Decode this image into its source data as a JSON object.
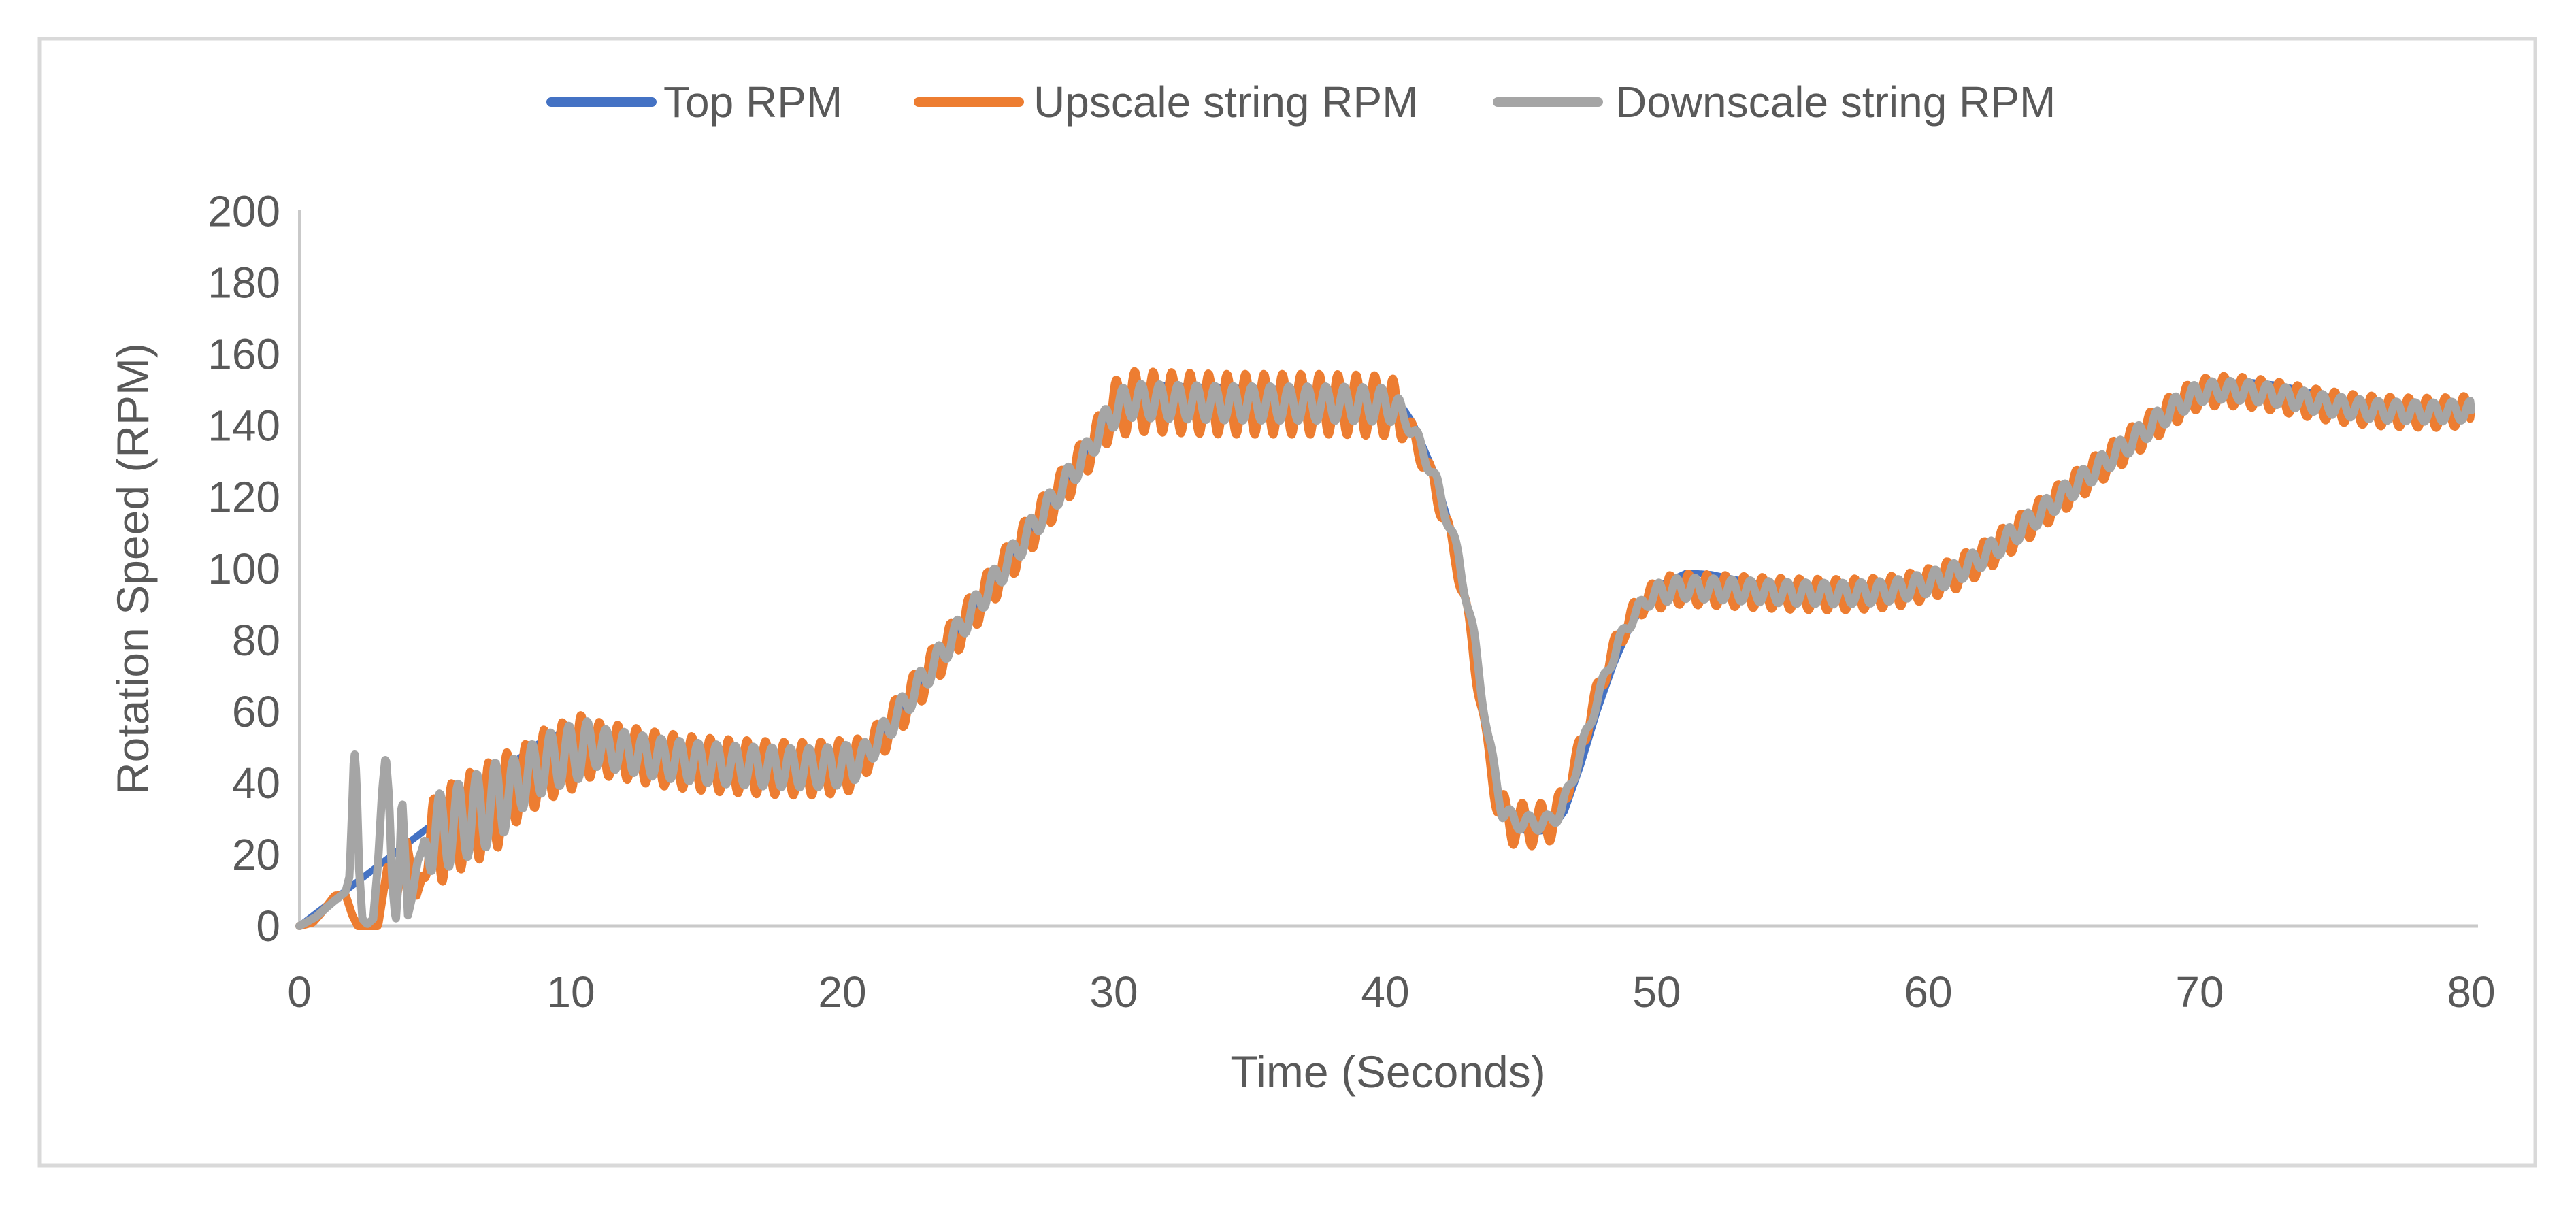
{
  "window": {
    "background_color": "#ffffff",
    "card_border_color": "#d9d9d9"
  },
  "chart_data": {
    "type": "line",
    "title": "",
    "xlabel": "Time (Seconds)",
    "ylabel": "Rotation Speed (RPM)",
    "xlim": [
      0,
      80
    ],
    "ylim": [
      0,
      200
    ],
    "xticks": [
      0,
      10,
      20,
      30,
      40,
      50,
      60,
      70,
      80
    ],
    "yticks": [
      0,
      20,
      40,
      60,
      80,
      100,
      120,
      140,
      160,
      180,
      200
    ],
    "grid": false,
    "legend_position": "top-center",
    "axis_color": "#c9c9c9",
    "label_color": "#595959",
    "oscillation_period_seconds": 0.68,
    "series": [
      {
        "name": "Top RPM",
        "color": "#4472C4",
        "stroke_width": 10,
        "phase_lag": 0,
        "mean_keypoints": [
          [
            0,
            0
          ],
          [
            1,
            5.8
          ],
          [
            2,
            11.6
          ],
          [
            3,
            17.4
          ],
          [
            4,
            23.2
          ],
          [
            5,
            29
          ],
          [
            6,
            34.8
          ],
          [
            7,
            40.6
          ],
          [
            8,
            46.4
          ],
          [
            8.8,
            51
          ],
          [
            9.6,
            53.8
          ],
          [
            10.3,
            54.3
          ],
          [
            11,
            53
          ],
          [
            12,
            50.8
          ],
          [
            13,
            48.8
          ],
          [
            14,
            47.2
          ],
          [
            15,
            45.6
          ],
          [
            16,
            44.4
          ],
          [
            17,
            43.4
          ],
          [
            18,
            42.7
          ],
          [
            19,
            42.5
          ],
          [
            19.7,
            42.9
          ],
          [
            20.4,
            44.3
          ],
          [
            21.2,
            50
          ],
          [
            22,
            58
          ],
          [
            23,
            68.8
          ],
          [
            24,
            79.4
          ],
          [
            25,
            90
          ],
          [
            26,
            100.6
          ],
          [
            27,
            111.2
          ],
          [
            28,
            121.8
          ],
          [
            29,
            132.4
          ],
          [
            29.9,
            144
          ],
          [
            30.7,
            150
          ],
          [
            31.5,
            151.3
          ],
          [
            32.5,
            151
          ],
          [
            34,
            150.6
          ],
          [
            36,
            150.3
          ],
          [
            38,
            150
          ],
          [
            40.3,
            149
          ],
          [
            41,
            141
          ],
          [
            41.8,
            127
          ],
          [
            42.6,
            106
          ],
          [
            43.2,
            82
          ],
          [
            43.7,
            55
          ],
          [
            44.3,
            33
          ],
          [
            44.8,
            27.2
          ],
          [
            45.5,
            26.3
          ],
          [
            46.1,
            27
          ],
          [
            46.6,
            32
          ],
          [
            47.2,
            45
          ],
          [
            47.8,
            60
          ],
          [
            48.4,
            73
          ],
          [
            49,
            83.5
          ],
          [
            49.6,
            91
          ],
          [
            50.3,
            96
          ],
          [
            51.1,
            98.8
          ],
          [
            52,
            98.4
          ],
          [
            53,
            96.8
          ],
          [
            54,
            95.4
          ],
          [
            55,
            94.4
          ],
          [
            56,
            93.9
          ],
          [
            57,
            93.9
          ],
          [
            58,
            94.4
          ],
          [
            59,
            95.4
          ],
          [
            60,
            97
          ],
          [
            61,
            99.8
          ],
          [
            62,
            104.1
          ],
          [
            63,
            109.4
          ],
          [
            64,
            115.2
          ],
          [
            65,
            121.2
          ],
          [
            66,
            127.2
          ],
          [
            67,
            133.2
          ],
          [
            68,
            139.2
          ],
          [
            69,
            145.2
          ],
          [
            69.9,
            149.8
          ],
          [
            70.8,
            151.8
          ],
          [
            71.8,
            152.2
          ],
          [
            72.8,
            151.4
          ],
          [
            73.8,
            149.8
          ],
          [
            74.8,
            147.9
          ],
          [
            75.8,
            146.4
          ],
          [
            76.8,
            145.5
          ],
          [
            77.8,
            145
          ],
          [
            78.8,
            144.9
          ],
          [
            80,
            145.3
          ]
        ],
        "oscillation_segments": []
      },
      {
        "name": "Upscale string RPM",
        "color": "#ED7D31",
        "stroke_width": 12,
        "phase_lag": 0,
        "mean_keypoints": [
          [
            0,
            0
          ],
          [
            0.5,
            1
          ],
          [
            0.9,
            4.5
          ],
          [
            1.3,
            8.5
          ],
          [
            1.7,
            8.8
          ],
          [
            1.95,
            3
          ],
          [
            2.15,
            0
          ],
          [
            2.9,
            0
          ],
          [
            3.25,
            17
          ],
          [
            3.55,
            6
          ],
          [
            3.95,
            24
          ],
          [
            4.3,
            8
          ],
          [
            4.7,
            18
          ],
          [
            5,
            24
          ],
          [
            6,
            29
          ],
          [
            7,
            33
          ],
          [
            8,
            39
          ],
          [
            9,
            45
          ],
          [
            10,
            48
          ],
          [
            10.7,
            50
          ],
          [
            12,
            48.5
          ],
          [
            13,
            47
          ],
          [
            14,
            46
          ],
          [
            15,
            45.2
          ],
          [
            16,
            44.7
          ],
          [
            17,
            44.3
          ],
          [
            18,
            44
          ],
          [
            19,
            44
          ],
          [
            20,
            44.6
          ],
          [
            20.6,
            46
          ],
          [
            21.2,
            50.5
          ],
          [
            22,
            58.5
          ],
          [
            23,
            69
          ],
          [
            24,
            79.5
          ],
          [
            25,
            90
          ],
          [
            26,
            100.5
          ],
          [
            27,
            111
          ],
          [
            28,
            121.5
          ],
          [
            29,
            132
          ],
          [
            29.9,
            143.5
          ],
          [
            30.6,
            146.8
          ],
          [
            32,
            146.5
          ],
          [
            34,
            146
          ],
          [
            36,
            146
          ],
          [
            38,
            146
          ],
          [
            40.2,
            145.5
          ],
          [
            41,
            137.5
          ],
          [
            41.8,
            123.5
          ],
          [
            42.6,
            103
          ],
          [
            43.2,
            79
          ],
          [
            43.7,
            52
          ],
          [
            44.2,
            32
          ],
          [
            44.7,
            28.7
          ],
          [
            45.3,
            28.3
          ],
          [
            45.9,
            28.5
          ],
          [
            46.4,
            32
          ],
          [
            47,
            45.5
          ],
          [
            47.6,
            60.5
          ],
          [
            48.2,
            73.5
          ],
          [
            48.8,
            83.5
          ],
          [
            49.4,
            90
          ],
          [
            50,
            93
          ],
          [
            50.8,
            94.3
          ],
          [
            52,
            94
          ],
          [
            53.5,
            93.4
          ],
          [
            55,
            92.9
          ],
          [
            56.5,
            92.7
          ],
          [
            58,
            93
          ],
          [
            59,
            93.9
          ],
          [
            60,
            95.7
          ],
          [
            61,
            98.5
          ],
          [
            62,
            103
          ],
          [
            63,
            108.5
          ],
          [
            64,
            114.5
          ],
          [
            65,
            120.5
          ],
          [
            66,
            126.5
          ],
          [
            67,
            132.5
          ],
          [
            68,
            138.5
          ],
          [
            69,
            144.5
          ],
          [
            69.9,
            148.8
          ],
          [
            70.7,
            149.8
          ],
          [
            71.7,
            149.4
          ],
          [
            72.7,
            148.4
          ],
          [
            73.7,
            147
          ],
          [
            74.7,
            145.6
          ],
          [
            75.7,
            144.6
          ],
          [
            76.7,
            144
          ],
          [
            77.7,
            143.7
          ],
          [
            78.7,
            143.6
          ],
          [
            80,
            144.2
          ]
        ],
        "oscillation_segments": [
          {
            "from": 4.55,
            "to": 7.5,
            "amp": 13
          },
          {
            "from": 7.5,
            "to": 10.5,
            "amp": 10
          },
          {
            "from": 10.5,
            "to": 20.4,
            "amp": 7.5
          },
          {
            "from": 20.4,
            "to": 29.6,
            "amp": 5.5
          },
          {
            "from": 29.6,
            "to": 40.4,
            "amp": 8.5
          },
          {
            "from": 40.4,
            "to": 43.9,
            "amp": 3.2
          },
          {
            "from": 43.9,
            "to": 46.3,
            "amp": 6
          },
          {
            "from": 46.3,
            "to": 49.7,
            "amp": 3.4
          },
          {
            "from": 49.7,
            "to": 60.3,
            "amp": 4.4
          },
          {
            "from": 60.3,
            "to": 69.7,
            "amp": 4.4
          },
          {
            "from": 69.7,
            "to": 80,
            "amp": 4.2
          }
        ]
      },
      {
        "name": "Downscale string RPM",
        "color": "#A5A5A5",
        "stroke_width": 12,
        "phase_lag": 0.24,
        "mean_keypoints": [
          [
            0,
            0
          ],
          [
            0.6,
            2.5
          ],
          [
            1.2,
            6.5
          ],
          [
            1.7,
            9.5
          ],
          [
            1.85,
            14
          ],
          [
            1.95,
            34
          ],
          [
            2.02,
            50
          ],
          [
            2.1,
            42
          ],
          [
            2.2,
            16
          ],
          [
            2.32,
            2
          ],
          [
            2.5,
            0.5
          ],
          [
            2.72,
            2
          ],
          [
            2.9,
            18
          ],
          [
            3.05,
            38
          ],
          [
            3.18,
            48
          ],
          [
            3.3,
            36
          ],
          [
            3.42,
            12
          ],
          [
            3.55,
            1
          ],
          [
            3.68,
            16
          ],
          [
            3.78,
            37
          ],
          [
            3.88,
            22
          ],
          [
            4,
            3
          ],
          [
            4.15,
            8
          ],
          [
            4.35,
            18
          ],
          [
            4.6,
            23
          ],
          [
            5,
            25.5
          ],
          [
            6,
            29.5
          ],
          [
            7,
            33.5
          ],
          [
            8,
            39.5
          ],
          [
            9,
            45.5
          ],
          [
            10,
            48.3
          ],
          [
            10.7,
            50.3
          ],
          [
            12,
            48.8
          ],
          [
            13,
            47.3
          ],
          [
            14,
            46.3
          ],
          [
            15,
            45.5
          ],
          [
            16,
            45
          ],
          [
            17,
            44.6
          ],
          [
            18,
            44.3
          ],
          [
            19,
            44.3
          ],
          [
            20,
            44.9
          ],
          [
            20.6,
            46.3
          ],
          [
            21.2,
            50.8
          ],
          [
            22,
            58.8
          ],
          [
            23,
            69.3
          ],
          [
            24,
            79.8
          ],
          [
            25,
            90.3
          ],
          [
            26,
            100.8
          ],
          [
            27,
            111.3
          ],
          [
            28,
            121.8
          ],
          [
            29,
            132.3
          ],
          [
            29.9,
            143.8
          ],
          [
            30.6,
            147
          ],
          [
            32,
            146.7
          ],
          [
            34,
            146.3
          ],
          [
            36,
            146.2
          ],
          [
            38,
            146.2
          ],
          [
            40.3,
            145.8
          ],
          [
            41.1,
            137.8
          ],
          [
            41.9,
            123.8
          ],
          [
            42.7,
            103.3
          ],
          [
            43.3,
            79.3
          ],
          [
            43.8,
            52.3
          ],
          [
            44.3,
            32.3
          ],
          [
            44.8,
            29.2
          ],
          [
            45.4,
            28.8
          ],
          [
            46,
            29
          ],
          [
            46.5,
            32.5
          ],
          [
            47.1,
            46
          ],
          [
            47.7,
            61
          ],
          [
            48.3,
            74
          ],
          [
            48.9,
            84
          ],
          [
            49.5,
            90.3
          ],
          [
            50.1,
            93.3
          ],
          [
            50.9,
            94.6
          ],
          [
            52,
            94.3
          ],
          [
            53.5,
            93.7
          ],
          [
            55,
            93.2
          ],
          [
            56.5,
            93
          ],
          [
            58,
            93.3
          ],
          [
            59,
            94.2
          ],
          [
            60,
            96
          ],
          [
            61,
            98.8
          ],
          [
            62,
            103.3
          ],
          [
            63,
            108.8
          ],
          [
            64,
            114.8
          ],
          [
            65,
            120.8
          ],
          [
            66,
            126.8
          ],
          [
            67,
            132.8
          ],
          [
            68,
            138.8
          ],
          [
            69,
            144.8
          ],
          [
            69.9,
            149.1
          ],
          [
            70.7,
            150
          ],
          [
            71.7,
            149.6
          ],
          [
            72.7,
            148.7
          ],
          [
            73.7,
            147.3
          ],
          [
            74.7,
            145.9
          ],
          [
            75.7,
            144.9
          ],
          [
            76.7,
            144.2
          ],
          [
            77.7,
            143.9
          ],
          [
            78.7,
            143.8
          ],
          [
            80,
            144.3
          ]
        ],
        "oscillation_segments": [
          {
            "from": 4.55,
            "to": 7.5,
            "amp": 11
          },
          {
            "from": 7.5,
            "to": 10.5,
            "amp": 8
          },
          {
            "from": 10.5,
            "to": 20.4,
            "amp": 5.5
          },
          {
            "from": 20.4,
            "to": 29.6,
            "amp": 3.5
          },
          {
            "from": 29.6,
            "to": 40.4,
            "amp": 4.8
          },
          {
            "from": 40.4,
            "to": 43.9,
            "amp": 2
          },
          {
            "from": 43.9,
            "to": 46.3,
            "amp": 2.2
          },
          {
            "from": 46.3,
            "to": 49.7,
            "amp": 2
          },
          {
            "from": 49.7,
            "to": 60.3,
            "amp": 3
          },
          {
            "from": 60.3,
            "to": 69.7,
            "amp": 2.9
          },
          {
            "from": 69.7,
            "to": 80,
            "amp": 2.7
          }
        ]
      }
    ]
  }
}
